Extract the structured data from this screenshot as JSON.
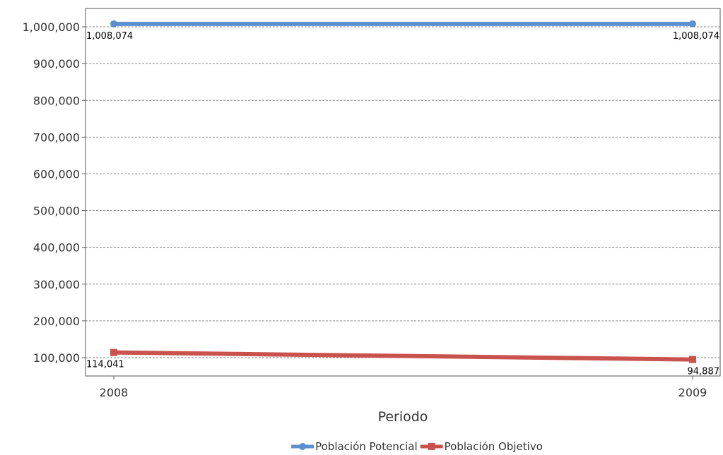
{
  "chart_data": {
    "type": "line",
    "categories": [
      "2008",
      "2009"
    ],
    "xlabel": "Periodo",
    "ylabel": "",
    "ylim": [
      50000,
      1050000
    ],
    "yticks": [
      100000,
      200000,
      300000,
      400000,
      500000,
      600000,
      700000,
      800000,
      900000,
      1000000
    ],
    "ytick_labels": [
      "100,000",
      "200,000",
      "300,000",
      "400,000",
      "500,000",
      "600,000",
      "700,000",
      "800,000",
      "900,000",
      "1,000,000"
    ],
    "grid": true,
    "legend_position": "bottom",
    "series": [
      {
        "name": "Población Potencial",
        "color": "#5b8fcf",
        "marker": "circle",
        "values": [
          1008074,
          1008074
        ],
        "labels": [
          "1,008,074",
          "1,008,074"
        ]
      },
      {
        "name": "Población Objetivo",
        "color": "#c9524c",
        "marker": "square",
        "values": [
          114041,
          94887
        ],
        "labels": [
          "114,041",
          "94,887"
        ]
      }
    ]
  }
}
